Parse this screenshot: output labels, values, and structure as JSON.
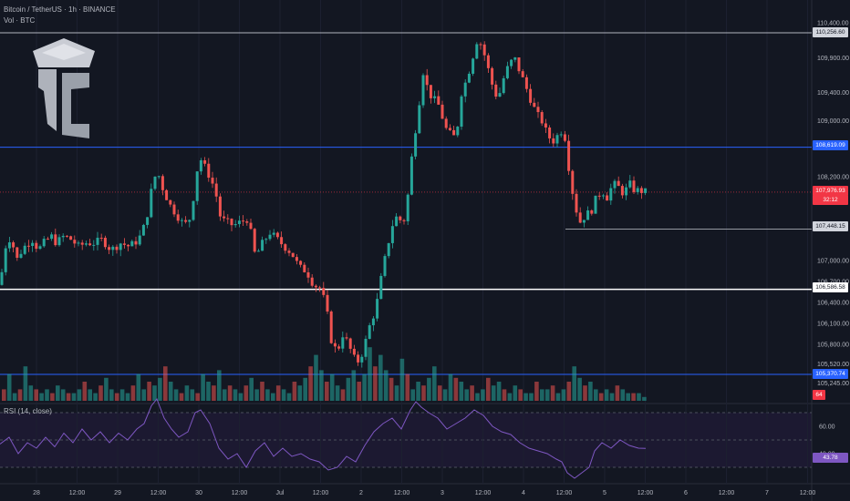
{
  "header": {
    "symbol_line": "Bitcoin / TetherUS · 1h · BINANCE",
    "volume_line": "Vol · BTC",
    "rsi_line": "RSI (14, close)"
  },
  "colors": {
    "background": "#131722",
    "bull": "#26a69a",
    "bear": "#ef5350",
    "rsi_line": "#7e57c2",
    "blue_level": "#2962ff",
    "white_level": "#ffffff"
  },
  "price_axis": {
    "ticks": [
      "110,400.00",
      "109,900.00",
      "109,400.00",
      "109,000.00",
      "108,200.00",
      "107,000.00",
      "106,700.00",
      "106,400.00",
      "106,100.00",
      "105,800.00",
      "105,520.00",
      "105,245.00"
    ],
    "range": [
      105100,
      110600
    ]
  },
  "price_tags": {
    "level_top": "110,256.60",
    "level_blue_upper": "108,619.09",
    "current_price": "107,976.93",
    "countdown": "32:12",
    "level_grey": "107,448.15",
    "level_white": "106,586.58",
    "level_blue_lower": "105,370.74",
    "volume_tag": "64"
  },
  "rsi_axis": {
    "ticks": [
      "60.00",
      "40.00"
    ],
    "current": "43.78",
    "upper_band": 70,
    "lower_band": 30
  },
  "time_axis": [
    "28",
    "12:00",
    "29",
    "12:00",
    "30",
    "12:00",
    "Jul",
    "12:00",
    "2",
    "12:00",
    "3",
    "12:00",
    "4",
    "12:00",
    "5",
    "12:00",
    "6",
    "12:00",
    "7",
    "12:00"
  ],
  "chart_data": {
    "type": "candlestick",
    "symbol": "BTCUSDT",
    "timeframe": "1h",
    "key_levels": [
      110256.6,
      108619.09,
      107448.15,
      106586.58,
      105370.74
    ],
    "last_price": 107976.93,
    "rsi_last": 43.78,
    "close_path": [
      [
        0,
        106650
      ],
      [
        6,
        107200
      ],
      [
        12,
        107350
      ],
      [
        18,
        107000
      ],
      [
        24,
        107150
      ],
      [
        30,
        107250
      ],
      [
        36,
        107300
      ],
      [
        42,
        107150
      ],
      [
        48,
        107250
      ],
      [
        56,
        107350
      ],
      [
        62,
        107250
      ],
      [
        70,
        107350
      ],
      [
        78,
        107300
      ],
      [
        86,
        107200
      ],
      [
        94,
        107250
      ],
      [
        104,
        107250
      ],
      [
        112,
        107300
      ],
      [
        122,
        107150
      ],
      [
        132,
        107250
      ],
      [
        142,
        107200
      ],
      [
        152,
        107300
      ],
      [
        160,
        107550
      ],
      [
        166,
        108000
      ],
      [
        172,
        108300
      ],
      [
        178,
        108050
      ],
      [
        186,
        107800
      ],
      [
        194,
        107650
      ],
      [
        202,
        107500
      ],
      [
        208,
        107600
      ],
      [
        214,
        108050
      ],
      [
        218,
        108500
      ],
      [
        224,
        108350
      ],
      [
        230,
        108200
      ],
      [
        236,
        108000
      ],
      [
        242,
        107600
      ],
      [
        248,
        107550
      ],
      [
        256,
        107500
      ],
      [
        264,
        107550
      ],
      [
        272,
        107600
      ],
      [
        280,
        107050
      ],
      [
        288,
        107250
      ],
      [
        296,
        107400
      ],
      [
        304,
        107300
      ],
      [
        312,
        107200
      ],
      [
        320,
        107100
      ],
      [
        328,
        106900
      ],
      [
        336,
        106850
      ],
      [
        344,
        106650
      ],
      [
        352,
        106600
      ],
      [
        358,
        106300
      ],
      [
        364,
        105800
      ],
      [
        370,
        105700
      ],
      [
        376,
        105950
      ],
      [
        382,
        105800
      ],
      [
        388,
        105600
      ],
      [
        394,
        105550
      ],
      [
        400,
        105800
      ],
      [
        406,
        106100
      ],
      [
        412,
        106300
      ],
      [
        418,
        106750
      ],
      [
        424,
        107150
      ],
      [
        430,
        107500
      ],
      [
        436,
        107650
      ],
      [
        442,
        107500
      ],
      [
        448,
        108000
      ],
      [
        452,
        108550
      ],
      [
        458,
        109100
      ],
      [
        464,
        109700
      ],
      [
        470,
        109400
      ],
      [
        476,
        109300
      ],
      [
        482,
        109200
      ],
      [
        488,
        108900
      ],
      [
        494,
        108800
      ],
      [
        500,
        108750
      ],
      [
        506,
        109400
      ],
      [
        512,
        109600
      ],
      [
        518,
        109900
      ],
      [
        524,
        110200
      ],
      [
        530,
        110000
      ],
      [
        536,
        109700
      ],
      [
        540,
        109500
      ],
      [
        546,
        109300
      ],
      [
        552,
        109600
      ],
      [
        558,
        109800
      ],
      [
        564,
        109900
      ],
      [
        570,
        109700
      ],
      [
        576,
        109500
      ],
      [
        582,
        109300
      ],
      [
        588,
        109100
      ],
      [
        594,
        109000
      ],
      [
        600,
        108800
      ],
      [
        606,
        108700
      ],
      [
        612,
        108800
      ],
      [
        618,
        108900
      ],
      [
        624,
        108300
      ],
      [
        630,
        107800
      ],
      [
        636,
        107550
      ],
      [
        642,
        107650
      ],
      [
        648,
        107700
      ],
      [
        654,
        107900
      ],
      [
        660,
        108000
      ],
      [
        666,
        107900
      ],
      [
        672,
        108100
      ],
      [
        678,
        108050
      ],
      [
        684,
        107950
      ],
      [
        690,
        108100
      ],
      [
        696,
        108000
      ],
      [
        702,
        108000
      ],
      [
        708,
        107977
      ]
    ],
    "rsi_path": [
      [
        0,
        47
      ],
      [
        10,
        52
      ],
      [
        20,
        40
      ],
      [
        30,
        48
      ],
      [
        40,
        44
      ],
      [
        50,
        52
      ],
      [
        60,
        45
      ],
      [
        70,
        55
      ],
      [
        80,
        48
      ],
      [
        90,
        58
      ],
      [
        100,
        50
      ],
      [
        110,
        56
      ],
      [
        120,
        48
      ],
      [
        130,
        55
      ],
      [
        140,
        50
      ],
      [
        150,
        58
      ],
      [
        158,
        62
      ],
      [
        166,
        75
      ],
      [
        172,
        80
      ],
      [
        180,
        66
      ],
      [
        188,
        58
      ],
      [
        196,
        52
      ],
      [
        206,
        56
      ],
      [
        214,
        70
      ],
      [
        220,
        72
      ],
      [
        230,
        62
      ],
      [
        240,
        44
      ],
      [
        250,
        36
      ],
      [
        260,
        40
      ],
      [
        270,
        30
      ],
      [
        280,
        42
      ],
      [
        290,
        48
      ],
      [
        300,
        38
      ],
      [
        310,
        44
      ],
      [
        320,
        38
      ],
      [
        330,
        40
      ],
      [
        340,
        36
      ],
      [
        350,
        34
      ],
      [
        360,
        28
      ],
      [
        370,
        30
      ],
      [
        380,
        38
      ],
      [
        390,
        34
      ],
      [
        400,
        46
      ],
      [
        410,
        56
      ],
      [
        420,
        62
      ],
      [
        430,
        66
      ],
      [
        440,
        58
      ],
      [
        450,
        72
      ],
      [
        456,
        78
      ],
      [
        462,
        74
      ],
      [
        470,
        70
      ],
      [
        480,
        66
      ],
      [
        490,
        58
      ],
      [
        500,
        62
      ],
      [
        510,
        66
      ],
      [
        520,
        72
      ],
      [
        530,
        68
      ],
      [
        540,
        60
      ],
      [
        550,
        56
      ],
      [
        560,
        54
      ],
      [
        570,
        48
      ],
      [
        580,
        44
      ],
      [
        590,
        42
      ],
      [
        600,
        40
      ],
      [
        610,
        36
      ],
      [
        616,
        34
      ],
      [
        622,
        26
      ],
      [
        630,
        22
      ],
      [
        638,
        26
      ],
      [
        646,
        30
      ],
      [
        652,
        42
      ],
      [
        660,
        48
      ],
      [
        670,
        44
      ],
      [
        680,
        50
      ],
      [
        690,
        46
      ],
      [
        700,
        44
      ],
      [
        708,
        43.78
      ]
    ],
    "volume_profile": [
      3,
      7,
      2,
      3,
      9,
      4,
      3,
      2,
      3,
      2,
      4,
      3,
      2,
      2,
      3,
      5,
      3,
      2,
      4,
      6,
      3,
      2,
      3,
      2,
      4,
      7,
      3,
      5,
      4,
      6,
      9,
      5,
      3,
      2,
      4,
      3,
      2,
      7,
      5,
      4,
      8,
      3,
      4,
      3,
      2,
      4,
      6,
      3,
      5,
      3,
      2,
      4,
      3,
      2,
      5,
      4,
      6,
      9,
      12,
      8,
      5,
      7,
      4,
      3,
      6,
      8,
      5,
      7,
      14,
      9,
      12,
      8,
      6,
      4,
      11,
      7,
      3,
      5,
      4,
      6,
      9,
      4,
      3,
      7,
      6,
      5,
      3,
      4,
      2,
      3,
      6,
      4,
      5,
      3,
      2,
      4,
      3,
      2,
      2,
      5,
      3,
      3,
      4,
      2,
      3,
      5,
      9,
      6,
      4,
      5,
      3,
      2,
      3,
      2,
      4,
      3,
      2,
      2,
      2,
      1
    ]
  }
}
